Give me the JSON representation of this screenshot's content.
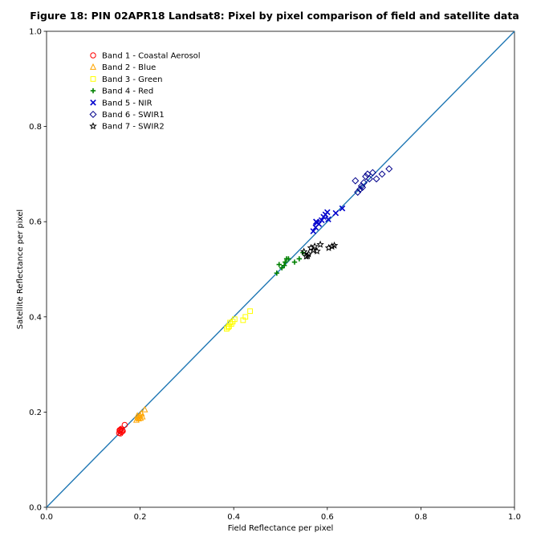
{
  "chart_data": {
    "type": "scatter",
    "title": "Figure 18: PIN 02APR18  Landsat8: Pixel by pixel comparison of field and satellite data",
    "xlabel": "Field Reflectance per pixel",
    "ylabel": "Satellite Reflectance per pixel",
    "xlim": [
      0.0,
      1.0
    ],
    "ylim": [
      0.0,
      1.0
    ],
    "xticks": [
      "0.0",
      "0.2",
      "0.4",
      "0.6",
      "0.8",
      "1.0"
    ],
    "yticks": [
      "0.0",
      "0.2",
      "0.4",
      "0.6",
      "0.8",
      "1.0"
    ],
    "grid": false,
    "legend_position": "upper-left",
    "reference_line": {
      "x": [
        0.0,
        1.0
      ],
      "y": [
        0.0,
        1.0
      ],
      "color": "#1f77b4"
    },
    "series": [
      {
        "name": "Band 1 - Coastal Aerosol",
        "marker": "circle",
        "color": "#ff0000",
        "points": [
          [
            0.155,
            0.156
          ],
          [
            0.157,
            0.16
          ],
          [
            0.158,
            0.163
          ],
          [
            0.16,
            0.158
          ],
          [
            0.162,
            0.162
          ],
          [
            0.158,
            0.155
          ],
          [
            0.163,
            0.16
          ],
          [
            0.156,
            0.162
          ],
          [
            0.167,
            0.173
          ],
          [
            0.16,
            0.165
          ]
        ]
      },
      {
        "name": "Band 2 - Blue",
        "marker": "triangle",
        "color": "#ffa500",
        "points": [
          [
            0.192,
            0.183
          ],
          [
            0.195,
            0.188
          ],
          [
            0.198,
            0.19
          ],
          [
            0.2,
            0.193
          ],
          [
            0.203,
            0.197
          ],
          [
            0.205,
            0.19
          ],
          [
            0.197,
            0.186
          ],
          [
            0.21,
            0.205
          ],
          [
            0.194,
            0.192
          ],
          [
            0.201,
            0.187
          ]
        ]
      },
      {
        "name": "Band 3 - Green",
        "marker": "square",
        "color": "#ffff00",
        "points": [
          [
            0.385,
            0.375
          ],
          [
            0.39,
            0.38
          ],
          [
            0.395,
            0.385
          ],
          [
            0.398,
            0.39
          ],
          [
            0.402,
            0.395
          ],
          [
            0.42,
            0.393
          ],
          [
            0.425,
            0.4
          ],
          [
            0.435,
            0.412
          ],
          [
            0.392,
            0.388
          ],
          [
            0.388,
            0.378
          ]
        ]
      },
      {
        "name": "Band 4 - Red",
        "marker": "plus",
        "color": "#008000",
        "points": [
          [
            0.492,
            0.492
          ],
          [
            0.497,
            0.51
          ],
          [
            0.503,
            0.503
          ],
          [
            0.508,
            0.508
          ],
          [
            0.513,
            0.522
          ],
          [
            0.517,
            0.522
          ],
          [
            0.53,
            0.515
          ],
          [
            0.54,
            0.522
          ],
          [
            0.548,
            0.535
          ],
          [
            0.51,
            0.515
          ]
        ]
      },
      {
        "name": "Band 5 - NIR",
        "marker": "x",
        "color": "#0000cd",
        "points": [
          [
            0.57,
            0.58
          ],
          [
            0.575,
            0.588
          ],
          [
            0.578,
            0.598
          ],
          [
            0.582,
            0.595
          ],
          [
            0.588,
            0.603
          ],
          [
            0.592,
            0.61
          ],
          [
            0.596,
            0.615
          ],
          [
            0.602,
            0.605
          ],
          [
            0.618,
            0.618
          ],
          [
            0.632,
            0.628
          ],
          [
            0.576,
            0.6
          ],
          [
            0.6,
            0.62
          ]
        ]
      },
      {
        "name": "Band 6 - SWIR1",
        "marker": "diamond",
        "color": "#00008b",
        "points": [
          [
            0.66,
            0.686
          ],
          [
            0.665,
            0.662
          ],
          [
            0.67,
            0.668
          ],
          [
            0.673,
            0.675
          ],
          [
            0.678,
            0.682
          ],
          [
            0.682,
            0.695
          ],
          [
            0.686,
            0.7
          ],
          [
            0.69,
            0.69
          ],
          [
            0.697,
            0.703
          ],
          [
            0.705,
            0.69
          ],
          [
            0.717,
            0.7
          ],
          [
            0.732,
            0.711
          ],
          [
            0.675,
            0.672
          ]
        ]
      },
      {
        "name": "Band 7 - SWIR2",
        "marker": "star",
        "color": "#000000",
        "points": [
          [
            0.55,
            0.537
          ],
          [
            0.555,
            0.527
          ],
          [
            0.56,
            0.532
          ],
          [
            0.565,
            0.545
          ],
          [
            0.57,
            0.54
          ],
          [
            0.573,
            0.548
          ],
          [
            0.578,
            0.538
          ],
          [
            0.585,
            0.552
          ],
          [
            0.603,
            0.545
          ],
          [
            0.61,
            0.548
          ],
          [
            0.615,
            0.55
          ],
          [
            0.558,
            0.528
          ]
        ]
      }
    ]
  }
}
